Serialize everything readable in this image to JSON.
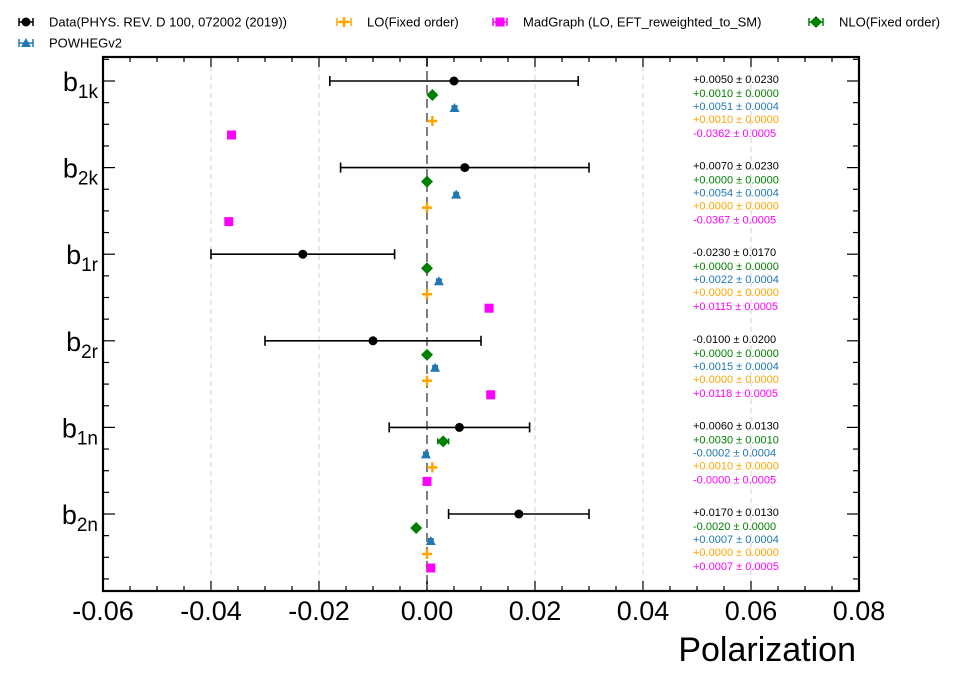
{
  "chart_data": {
    "type": "scatter",
    "xlabel": "Polarization",
    "xlim": [
      -0.06,
      0.08
    ],
    "xticks": [
      "-0.06",
      "-0.04",
      "-0.02",
      "0.00",
      "0.02",
      "0.04",
      "0.06",
      "0.08"
    ],
    "xtick_values": [
      -0.06,
      -0.04,
      -0.02,
      0.0,
      0.02,
      0.04,
      0.06,
      0.08
    ],
    "grid": "vertical dashed",
    "reference_line_x": 0.0,
    "legend_position": "top",
    "categories": [
      {
        "main": "b",
        "sub": "1k"
      },
      {
        "main": "b",
        "sub": "2k"
      },
      {
        "main": "b",
        "sub": "1r"
      },
      {
        "main": "b",
        "sub": "2r"
      },
      {
        "main": "b",
        "sub": "1n"
      },
      {
        "main": "b",
        "sub": "2n"
      }
    ],
    "series": [
      {
        "name": "Data(PHYS. REV. D 100, 072002 (2019))",
        "color": "#000000",
        "marker": "circle",
        "values": [
          0.005,
          0.007,
          -0.023,
          -0.01,
          0.006,
          0.017
        ],
        "errors": [
          0.023,
          0.023,
          0.017,
          0.02,
          0.013,
          0.013
        ],
        "labels": [
          "+0.0050 ± 0.0230",
          "+0.0070 ± 0.0230",
          "-0.0230 ± 0.0170",
          "-0.0100 ± 0.0200",
          "+0.0060 ± 0.0130",
          "+0.0170 ± 0.0130"
        ]
      },
      {
        "name": "NLO(Fixed order)",
        "color": "#008000",
        "marker": "diamond",
        "values": [
          0.001,
          0.0,
          0.0,
          0.0,
          0.003,
          -0.002
        ],
        "errors": [
          0.0,
          0.0,
          0.0,
          0.0,
          0.001,
          0.0
        ],
        "labels": [
          "+0.0010 ± 0.0000",
          "+0.0000 ± 0.0000",
          "+0.0000 ± 0.0000",
          "+0.0000 ± 0.0000",
          "+0.0030 ± 0.0010",
          "-0.0020 ± 0.0000"
        ]
      },
      {
        "name": "POWHEGv2",
        "color": "#1f77b4",
        "marker": "triangle",
        "values": [
          0.0051,
          0.0054,
          0.0022,
          0.0015,
          -0.0002,
          0.0007
        ],
        "errors": [
          0.0004,
          0.0004,
          0.0004,
          0.0004,
          0.0004,
          0.0004
        ],
        "labels": [
          "+0.0051 ± 0.0004",
          "+0.0054 ± 0.0004",
          "+0.0022 ± 0.0004",
          "+0.0015 ± 0.0004",
          "-0.0002 ± 0.0004",
          "+0.0007 ± 0.0004"
        ]
      },
      {
        "name": "LO(Fixed order)",
        "color": "#ffa500",
        "marker": "plus",
        "values": [
          0.001,
          0.0,
          0.0,
          0.0,
          0.001,
          0.0
        ],
        "errors": [
          0.0,
          0.0,
          0.0,
          0.0,
          0.0,
          0.0
        ],
        "labels": [
          "+0.0010 ± 0.0000",
          "+0.0000 ± 0.0000",
          "+0.0000 ± 0.0000",
          "+0.0000 ± 0.0000",
          "+0.0010 ± 0.0000",
          "+0.0000 ± 0.0000"
        ]
      },
      {
        "name": "MadGraph (LO, EFT_reweighted_to_SM)",
        "color": "#ff00ff",
        "marker": "square",
        "values": [
          -0.0362,
          -0.0367,
          0.0115,
          0.0118,
          -0.0,
          0.0007
        ],
        "errors": [
          0.0005,
          0.0005,
          0.0005,
          0.0005,
          0.0005,
          0.0005
        ],
        "labels": [
          "-0.0362 ± 0.0005",
          "-0.0367 ± 0.0005",
          "+0.0115 ± 0.0005",
          "+0.0118 ± 0.0005",
          "-0.0000 ± 0.0005",
          "+0.0007 ± 0.0005"
        ]
      }
    ],
    "legend_order": [
      0,
      3,
      4,
      1,
      2
    ]
  }
}
